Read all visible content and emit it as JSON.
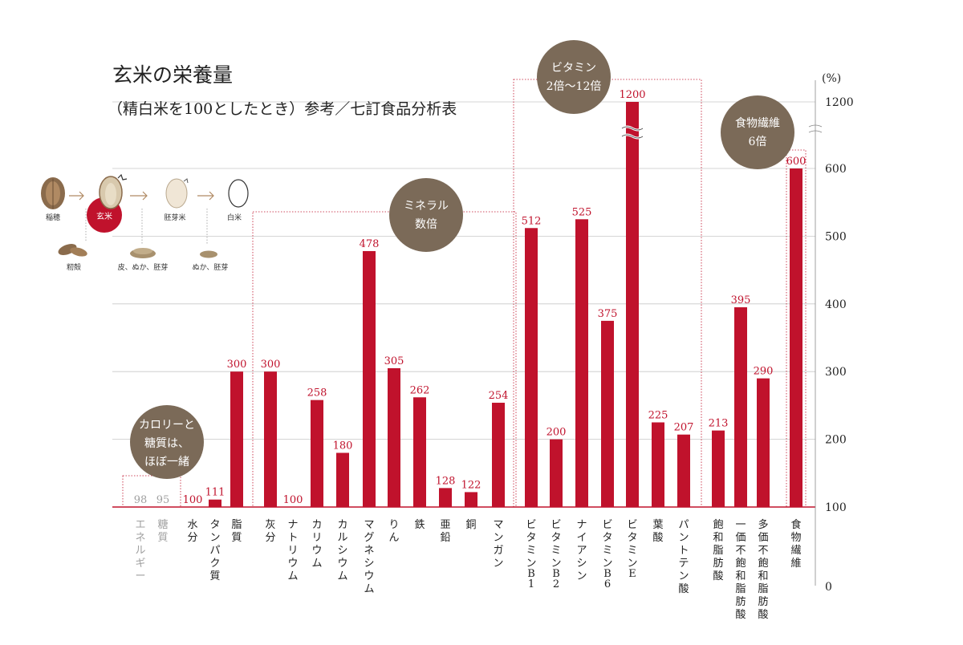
{
  "title": "玄米の栄養量",
  "subtitle": "（精白米を100としたとき）参考／七訂食品分析表",
  "colors": {
    "bar": "#c0122c",
    "grid": "#c8c8c8",
    "badge": "#7b6a58",
    "muted": "#a0a0a0",
    "text": "#222222"
  },
  "axis": {
    "unit": "(%)",
    "ticks": [
      "0",
      "100",
      "200",
      "300",
      "400",
      "500",
      "600",
      "1200"
    ]
  },
  "process": {
    "stages": [
      "稲穂",
      "玄米",
      "胚芽米",
      "白米"
    ],
    "removed": [
      "籾殻",
      "皮、ぬか、胚芽",
      "ぬか、胚芽"
    ]
  },
  "badges": {
    "calorie": [
      "カロリーと",
      "糖質は、",
      "ほぼ一緒"
    ],
    "mineral": [
      "ミネラル",
      "数倍"
    ],
    "vitamin": [
      "ビタミン",
      "2倍〜12倍"
    ],
    "fiber": [
      "食物繊維",
      "6倍"
    ]
  },
  "chart_data": {
    "type": "bar",
    "title": "玄米の栄養量",
    "subtitle": "（精白米を100としたとき）参考／七訂食品分析表",
    "ylabel": "(%)",
    "ylim": [
      0,
      1200
    ],
    "axis_break": [
      600,
      1200
    ],
    "categories": [
      "エネルギー",
      "糖質",
      "水分",
      "タンパク質",
      "脂質",
      "灰分",
      "ナトリウム",
      "カリウム",
      "カルシウム",
      "マグネシウム",
      "りん",
      "鉄",
      "亜鉛",
      "銅",
      "マンガン",
      "ビタミンB1",
      "ビタミンB2",
      "ナイアシン",
      "ビタミンB6",
      "ビタミンE",
      "葉酸",
      "パントテン酸",
      "飽和脂肪酸",
      "一価不飽和脂肪酸",
      "多価不飽和脂肪酸",
      "食物繊維"
    ],
    "values": [
      98,
      95,
      100,
      111,
      300,
      300,
      100,
      258,
      180,
      478,
      305,
      262,
      128,
      122,
      254,
      512,
      200,
      525,
      375,
      1200,
      225,
      207,
      213,
      395,
      290,
      600
    ],
    "value_labels": [
      "98",
      "95",
      "100",
      "111",
      "300",
      "300",
      "100",
      "258",
      "180",
      "478",
      "305",
      "262",
      "128",
      "122",
      "254",
      "512",
      "200",
      "525",
      "375",
      "1200",
      "225",
      "207",
      "213",
      "395",
      "290",
      "600"
    ],
    "groups": [
      {
        "categories": [
          "エネルギー",
          "糖質"
        ]
      },
      {
        "categories": [
          "灰分",
          "ナトリウム",
          "カリウム",
          "カルシウム",
          "マグネシウム",
          "りん",
          "鉄",
          "亜鉛",
          "銅",
          "マンガン"
        ]
      },
      {
        "categories": [
          "ビタミンB1",
          "ビタミンB2",
          "ナイアシン",
          "ビタミンB6",
          "ビタミンE",
          "葉酸",
          "パントテン酸"
        ]
      },
      {
        "categories": [
          "食物繊維"
        ]
      }
    ],
    "grid": true,
    "legend": "none"
  }
}
